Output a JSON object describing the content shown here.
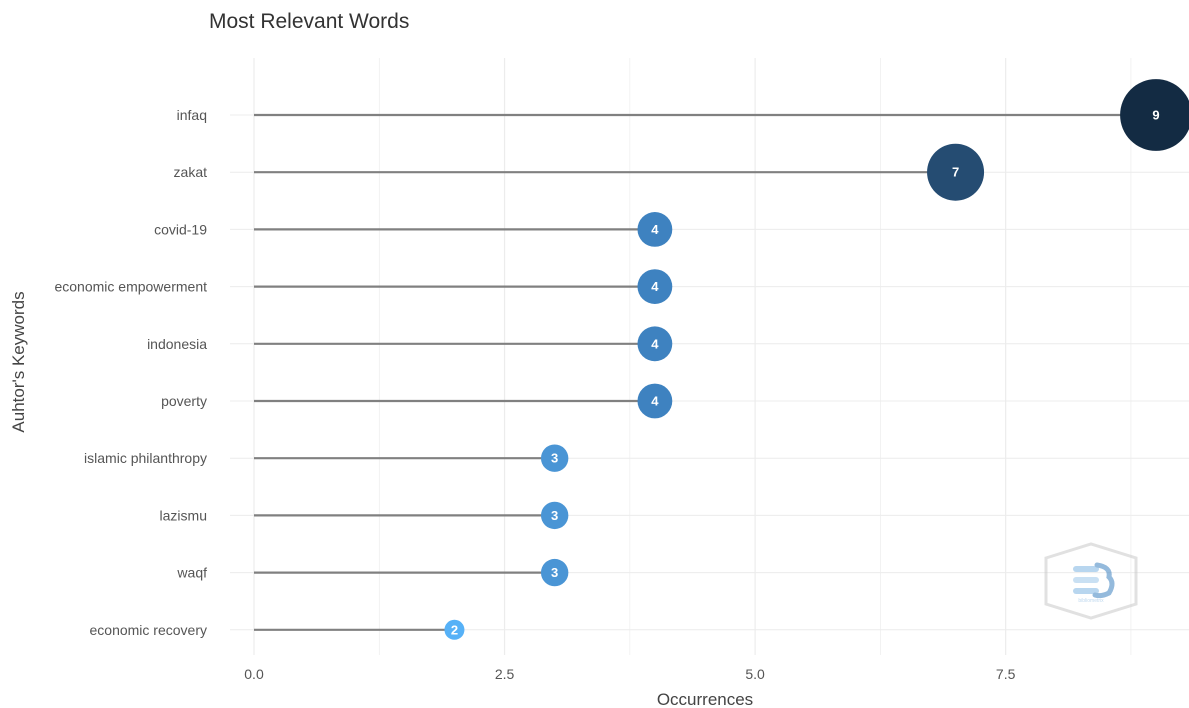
{
  "chart_data": {
    "type": "scatter",
    "title": "Most Relevant Words",
    "xlabel": "Occurrences",
    "ylabel": "Auhtor's Keywords",
    "xlim": [
      0,
      9
    ],
    "x_ticks": [
      "0.0",
      "2.5",
      "5.0",
      "7.5"
    ],
    "x_tick_values": [
      0,
      2.5,
      5,
      7.5
    ],
    "grid": true,
    "categories": [
      "infaq",
      "zakat",
      "covid-19",
      "economic empowerment",
      "indonesia",
      "poverty",
      "islamic philanthropy",
      "lazismu",
      "waqf",
      "economic recovery"
    ],
    "values": [
      9,
      7,
      4,
      4,
      4,
      4,
      3,
      3,
      3,
      2
    ],
    "value_labels": [
      "9",
      "7",
      "4",
      "4",
      "4",
      "4",
      "3",
      "3",
      "3",
      "2"
    ],
    "colors": {
      "9": "#132b43",
      "7": "#254c72",
      "4": "#3e82c0",
      "3": "#4a95d5",
      "2": "#56b1f7",
      "stem": "#808080",
      "grid": "#ececec"
    }
  },
  "watermark": {
    "icon": "bibliometrix-logo-icon",
    "text": "bibliometrix"
  }
}
